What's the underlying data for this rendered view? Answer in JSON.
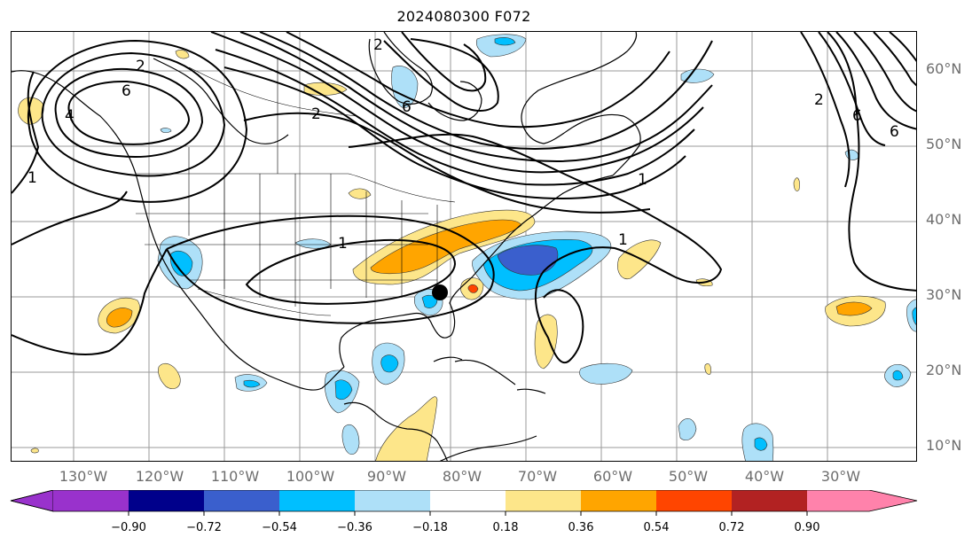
{
  "title": "2024080300 F072",
  "map": {
    "lat_labels": [
      "60°N",
      "50°N",
      "40°N",
      "30°N",
      "20°N",
      "10°N"
    ],
    "lon_labels": [
      "130°W",
      "120°W",
      "110°W",
      "100°W",
      "90°W",
      "80°W",
      "70°W",
      "60°W",
      "50°W",
      "40°W",
      "30°W"
    ],
    "contour_labels": [
      "2",
      "6",
      "4",
      "1",
      "2",
      "6",
      "1",
      "2",
      "1",
      "1",
      "2",
      "6",
      "6"
    ],
    "marker": "storm-center-dot"
  },
  "colorbar": {
    "ticks": [
      "−0.90",
      "−0.72",
      "−0.54",
      "−0.36",
      "−0.18",
      "0.18",
      "0.36",
      "0.54",
      "0.72",
      "0.90"
    ],
    "colors": [
      "#9932cc",
      "#00008b",
      "#3a5fcd",
      "#00bfff",
      "#aee0f8",
      "#ffffff",
      "#fde68a",
      "#ffa500",
      "#ff4500",
      "#b22222",
      "#ff82ab"
    ]
  }
}
